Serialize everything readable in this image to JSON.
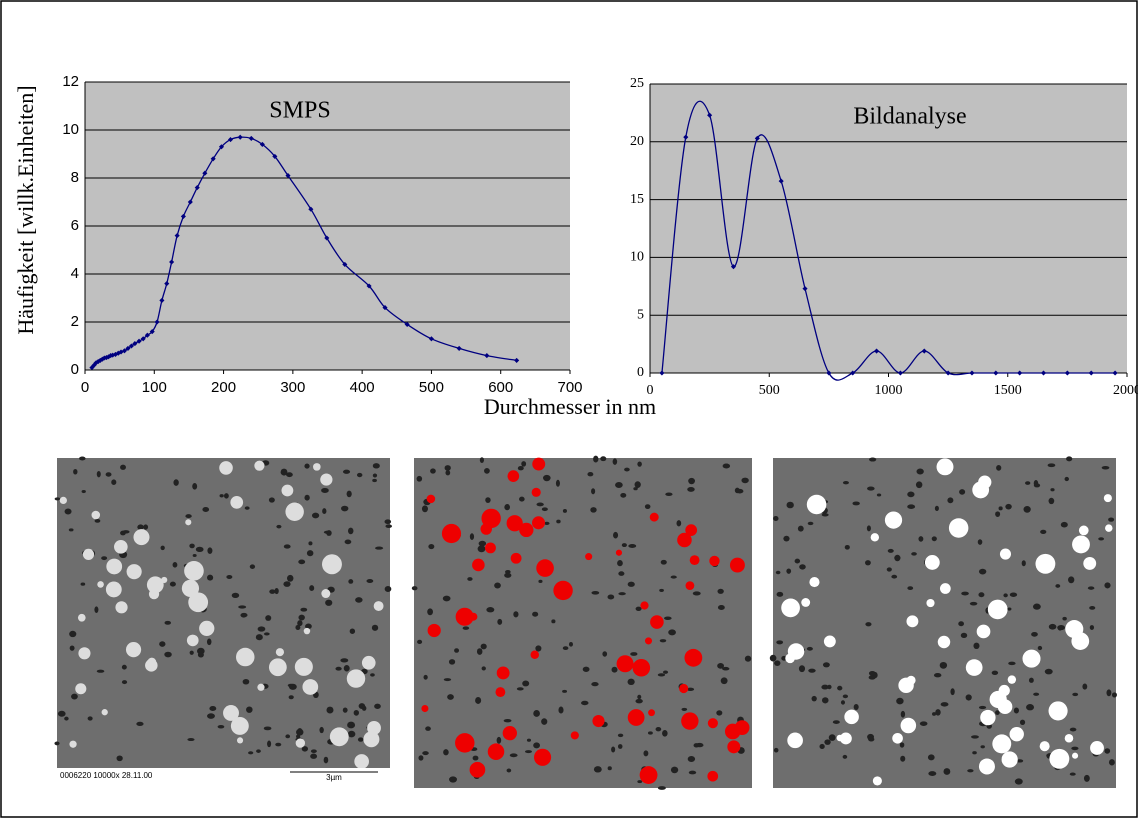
{
  "y_axis_label": "Häufigkeit [willk.Einheiten]",
  "x_axis_label": "Durchmesser in nm",
  "chart_data": [
    {
      "type": "line",
      "title": "SMPS",
      "x": [
        10,
        13,
        16,
        19,
        22,
        25,
        28,
        31,
        34,
        37,
        40,
        44,
        48,
        52,
        57,
        62,
        67,
        72,
        78,
        84,
        90,
        97,
        104,
        111,
        118,
        125,
        133,
        142,
        152,
        162,
        173,
        185,
        197,
        210,
        224,
        240,
        256,
        274,
        293,
        326,
        349,
        375,
        410,
        433,
        465,
        500,
        540,
        580,
        623
      ],
      "series": [
        {
          "color": "#000080",
          "values": [
            0.1,
            0.2,
            0.3,
            0.35,
            0.4,
            0.45,
            0.5,
            0.52,
            0.55,
            0.6,
            0.62,
            0.65,
            0.7,
            0.75,
            0.8,
            0.9,
            1.0,
            1.1,
            1.2,
            1.3,
            1.45,
            1.6,
            2.0,
            2.9,
            3.6,
            4.5,
            5.6,
            6.4,
            7.0,
            7.6,
            8.2,
            8.8,
            9.3,
            9.6,
            9.7,
            9.65,
            9.4,
            8.9,
            8.1,
            6.7,
            5.5,
            4.4,
            3.5,
            2.6,
            1.9,
            1.3,
            0.9,
            0.6,
            0.4
          ]
        }
      ],
      "xlim": [
        0,
        700
      ],
      "xticks": [
        0,
        100,
        200,
        300,
        400,
        500,
        600,
        700
      ],
      "ylim": [
        0,
        12
      ],
      "yticks": [
        0,
        2,
        4,
        6,
        8,
        10,
        12
      ],
      "grid": true
    },
    {
      "type": "line",
      "title": "Bildanalyse",
      "x": [
        50,
        150,
        250,
        350,
        450,
        550,
        650,
        750,
        850,
        950,
        1050,
        1150,
        1250,
        1350,
        1450,
        1550,
        1650,
        1750,
        1850,
        1950
      ],
      "series": [
        {
          "color": "#000080",
          "values": [
            0,
            20.4,
            22.3,
            9.2,
            20.3,
            16.6,
            7.3,
            0,
            0,
            1.9,
            0,
            1.9,
            0,
            0,
            0,
            0,
            0,
            0,
            0,
            0
          ]
        }
      ],
      "xlim": [
        0,
        2000
      ],
      "xticks": [
        0,
        500,
        1000,
        1500,
        2000
      ],
      "ylim": [
        0,
        25
      ],
      "yticks": [
        0,
        5,
        10,
        15,
        20,
        25
      ],
      "grid": true
    }
  ],
  "images": {
    "caption": "0006220 10000x 28.11.00",
    "scale": "3µm"
  }
}
